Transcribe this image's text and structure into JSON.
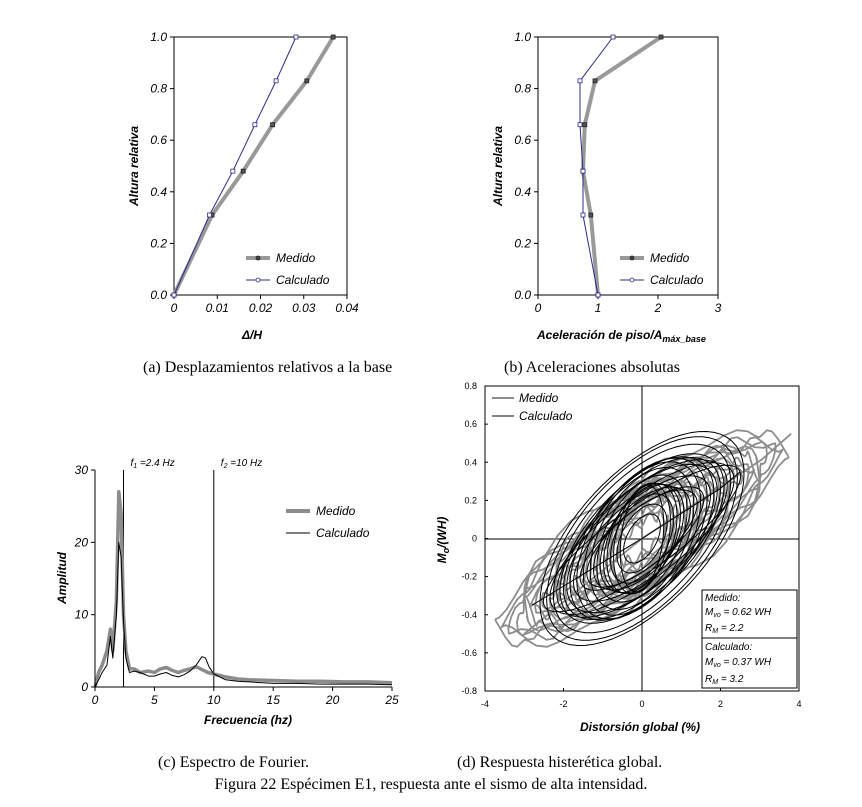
{
  "figure_caption": "Figura 22 Espécimen E1, respuesta ante el sismo de alta intensidad.",
  "chart_data": [
    {
      "type": "line",
      "caption": "(a) Desplazamientos relativos a la base",
      "xlabel": "Δ/H",
      "ylabel": "Altura relativa",
      "xlim": [
        0,
        0.04
      ],
      "ylim": [
        0,
        1.0
      ],
      "xticks": [
        "0",
        "0.01",
        "0.02",
        "0.03",
        "0.04"
      ],
      "yticks": [
        "0.0",
        "0.2",
        "0.4",
        "0.6",
        "0.8",
        "1.0"
      ],
      "legend_position": "bottom-right",
      "series": [
        {
          "name": "Medido",
          "color": "#999999",
          "points": [
            [
              0,
              0
            ],
            [
              0.0088,
              0.31
            ],
            [
              0.016,
              0.48
            ],
            [
              0.0228,
              0.66
            ],
            [
              0.0307,
              0.83
            ],
            [
              0.0368,
              1.0
            ]
          ]
        },
        {
          "name": "Calculado",
          "color": "#2b2b8c",
          "points": [
            [
              0,
              0
            ],
            [
              0.0082,
              0.31
            ],
            [
              0.0136,
              0.48
            ],
            [
              0.0187,
              0.66
            ],
            [
              0.0236,
              0.83
            ],
            [
              0.0282,
              1.0
            ]
          ]
        }
      ]
    },
    {
      "type": "line",
      "caption": "(b) Aceleraciones absolutas",
      "xlabel_main": "Aceleración de piso/A",
      "xlabel_sub": "máx_base",
      "ylabel": "Altura relativa",
      "xlim": [
        0,
        3
      ],
      "ylim": [
        0,
        1.0
      ],
      "xticks": [
        "0",
        "1",
        "2",
        "3"
      ],
      "yticks": [
        "0.0",
        "0.2",
        "0.4",
        "0.6",
        "0.8",
        "1.0"
      ],
      "legend_position": "bottom-right",
      "series": [
        {
          "name": "Medido",
          "color": "#999999",
          "points": [
            [
              1.0,
              0
            ],
            [
              0.88,
              0.31
            ],
            [
              0.75,
              0.48
            ],
            [
              0.78,
              0.66
            ],
            [
              0.95,
              0.83
            ],
            [
              2.05,
              1.0
            ]
          ]
        },
        {
          "name": "Calculado",
          "color": "#2b2b8c",
          "points": [
            [
              1.0,
              0
            ],
            [
              0.75,
              0.31
            ],
            [
              0.75,
              0.48
            ],
            [
              0.7,
              0.66
            ],
            [
              0.7,
              0.83
            ],
            [
              1.25,
              1.0
            ]
          ]
        }
      ]
    },
    {
      "type": "line",
      "caption": "(c) Espectro de Fourier.",
      "xlabel": "Frecuencia (hz)",
      "ylabel": "Amplitud",
      "xlim": [
        0,
        25
      ],
      "ylim": [
        0,
        30
      ],
      "xticks": [
        "0",
        "5",
        "10",
        "15",
        "20",
        "25"
      ],
      "yticks": [
        "0",
        "10",
        "20",
        "30"
      ],
      "annotations": [
        {
          "label": "f",
          "sub": "1",
          "text": " =2.4 Hz",
          "x": 2.4
        },
        {
          "label": "f",
          "sub": "2",
          "text": " =10 Hz",
          "x": 10
        }
      ],
      "legend_position": "top-right",
      "series": [
        {
          "name": "Medido",
          "color": "#8c8c8c",
          "points": [
            [
              0,
              0
            ],
            [
              0.3,
              2
            ],
            [
              0.6,
              3
            ],
            [
              1.0,
              5
            ],
            [
              1.3,
              8
            ],
            [
              1.5,
              5
            ],
            [
              1.8,
              12
            ],
            [
              2.0,
              27
            ],
            [
              2.2,
              24
            ],
            [
              2.4,
              10
            ],
            [
              2.6,
              5
            ],
            [
              2.9,
              2.5
            ],
            [
              3.3,
              2.5
            ],
            [
              3.8,
              2.0
            ],
            [
              4.5,
              2.2
            ],
            [
              5.0,
              2.0
            ],
            [
              5.5,
              2.5
            ],
            [
              6.0,
              2.7
            ],
            [
              6.5,
              2.3
            ],
            [
              7.0,
              2.0
            ],
            [
              7.5,
              2.3
            ],
            [
              8.0,
              2.5
            ],
            [
              8.5,
              2.8
            ],
            [
              9.0,
              2.4
            ],
            [
              9.5,
              2.0
            ],
            [
              10,
              1.8
            ],
            [
              11,
              1.4
            ],
            [
              12,
              1.1
            ],
            [
              13,
              1.0
            ],
            [
              15,
              0.9
            ],
            [
              17,
              0.8
            ],
            [
              19,
              0.8
            ],
            [
              21,
              0.7
            ],
            [
              23,
              0.7
            ],
            [
              25,
              0.6
            ]
          ]
        },
        {
          "name": "Calculado",
          "color": "#000000",
          "points": [
            [
              0,
              0
            ],
            [
              0.3,
              1
            ],
            [
              0.6,
              2
            ],
            [
              1.0,
              3
            ],
            [
              1.3,
              7
            ],
            [
              1.5,
              4
            ],
            [
              1.8,
              10
            ],
            [
              2.0,
              20
            ],
            [
              2.2,
              18
            ],
            [
              2.4,
              9
            ],
            [
              2.6,
              4
            ],
            [
              2.9,
              2
            ],
            [
              3.3,
              2.2
            ],
            [
              3.8,
              2.0
            ],
            [
              4.5,
              1.5
            ],
            [
              5.0,
              1.5
            ],
            [
              5.5,
              1.8
            ],
            [
              6.0,
              2.0
            ],
            [
              6.5,
              1.6
            ],
            [
              7.0,
              1.4
            ],
            [
              7.5,
              1.7
            ],
            [
              8.0,
              2.2
            ],
            [
              8.5,
              3.0
            ],
            [
              9.0,
              4.2
            ],
            [
              9.3,
              4.0
            ],
            [
              9.6,
              2.8
            ],
            [
              10,
              1.8
            ],
            [
              11,
              1.0
            ],
            [
              12,
              0.8
            ],
            [
              13,
              0.7
            ],
            [
              15,
              0.5
            ],
            [
              17,
              0.5
            ],
            [
              19,
              0.4
            ],
            [
              21,
              0.4
            ],
            [
              23,
              0.4
            ],
            [
              25,
              0.3
            ]
          ]
        }
      ]
    },
    {
      "type": "line",
      "caption": "(d) Respuesta histerética global.",
      "xlabel": "Distorsión global (%)",
      "ylabel_main": "M",
      "ylabel_sub": "o",
      "ylabel_tail": "/(WH)",
      "xlim": [
        -4,
        4
      ],
      "ylim": [
        -0.8,
        0.8
      ],
      "xticks": [
        "-4",
        "-2",
        "0",
        "2",
        "4"
      ],
      "yticks": [
        "-0.8",
        "-0.6",
        "-0.4",
        "-0.2",
        "0",
        "0.2",
        "0.4",
        "0.6",
        "0.8"
      ],
      "legend_position": "top-left",
      "series": [
        {
          "name": "Medido",
          "color": "#8c8c8c"
        },
        {
          "name": "Calculado",
          "color": "#000000"
        }
      ],
      "hysteresis": {
        "measured": {
          "amp_x": 3.6,
          "amp_y": 0.46,
          "opening": 0.12,
          "peak_pos": [
            3.8,
            0.55
          ],
          "peak_neg": [
            -3.0,
            -0.5
          ]
        },
        "calculated": {
          "amp_x": 2.6,
          "amp_y": 0.34,
          "opening": 0.16,
          "peak_pos": [
            2.5,
            0.35
          ],
          "peak_neg": [
            -2.8,
            -0.35
          ]
        }
      },
      "info_box": {
        "measured_title": "Medido:",
        "measured_m_main": "M",
        "measured_m_sub": "vo",
        "measured_m_val": " = 0.62 WH",
        "measured_r_main": "R",
        "measured_r_sub": "M",
        "measured_r_val": " = 2.2",
        "calc_title": "Calculado:",
        "calc_m_main": "M",
        "calc_m_sub": "vo",
        "calc_m_val": " = 0.37 WH",
        "calc_r_main": "R",
        "calc_r_sub": "M",
        "calc_r_val": " = 3.2"
      }
    }
  ]
}
